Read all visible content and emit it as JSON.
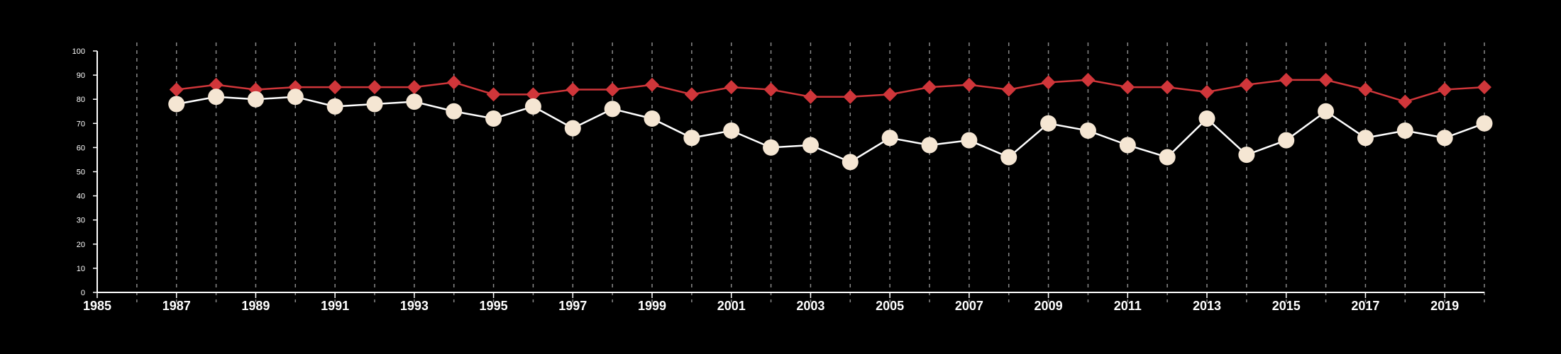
{
  "chart_data": {
    "type": "line",
    "title": "",
    "xlabel": "",
    "ylabel": "",
    "x": [
      1987,
      1988,
      1989,
      1990,
      1991,
      1992,
      1993,
      1994,
      1995,
      1996,
      1997,
      1998,
      1999,
      2000,
      2001,
      2002,
      2003,
      2004,
      2005,
      2006,
      2007,
      2008,
      2009,
      2010,
      2011,
      2012,
      2013,
      2014,
      2015,
      2016,
      2017,
      2018,
      2019,
      2020
    ],
    "xlim": [
      1985,
      2020
    ],
    "ylim": [
      0,
      100
    ],
    "x_ticks": [
      1985,
      1987,
      1989,
      1991,
      1993,
      1995,
      1997,
      1999,
      2001,
      2003,
      2005,
      2007,
      2009,
      2011,
      2013,
      2015,
      2017,
      2019
    ],
    "y_ticks": [
      0,
      10,
      20,
      30,
      40,
      50,
      60,
      70,
      80,
      90,
      100
    ],
    "grid": "vertical dashed lines at every year",
    "legend": "none",
    "series": [
      {
        "marker": "diamond",
        "color": "#d0363a",
        "values": [
          84,
          86,
          84,
          85,
          85,
          85,
          85,
          87,
          82,
          82,
          84,
          84,
          86,
          82,
          85,
          84,
          81,
          81,
          82,
          85,
          86,
          84,
          87,
          88,
          85,
          85,
          83,
          86,
          88,
          88,
          84,
          79,
          84,
          85
        ]
      },
      {
        "marker": "circle",
        "color": "#f5e6d3",
        "line_color": "#ffffff",
        "values": [
          78,
          81,
          80,
          81,
          77,
          78,
          79,
          75,
          72,
          77,
          68,
          76,
          72,
          64,
          67,
          60,
          61,
          54,
          64,
          61,
          63,
          56,
          70,
          67,
          61,
          56,
          72,
          57,
          63,
          75,
          64,
          67,
          64,
          70
        ]
      }
    ]
  }
}
